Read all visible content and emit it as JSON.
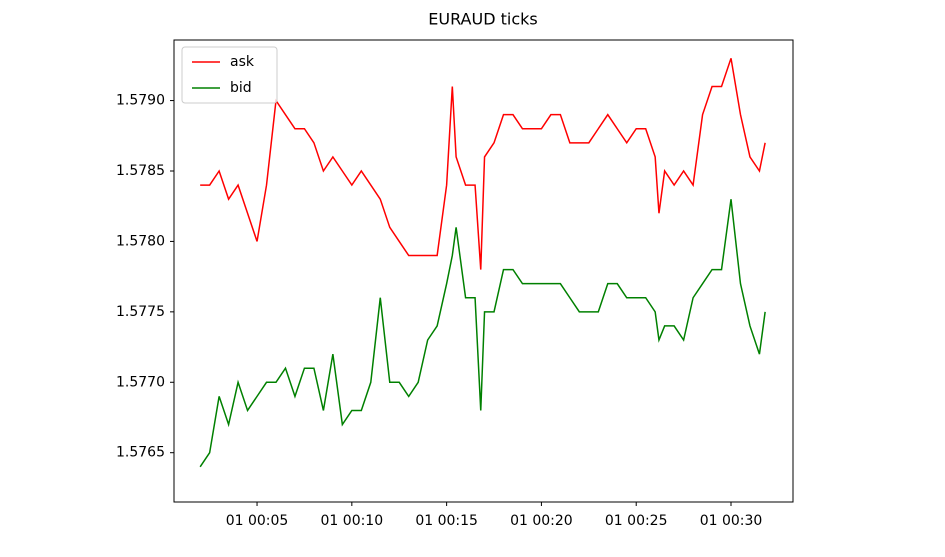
{
  "chart_data": {
    "type": "line",
    "title": "EURAUD ticks",
    "x": [
      2,
      2.5,
      3,
      3.5,
      4,
      4.5,
      5,
      5.5,
      6,
      6.5,
      7,
      7.5,
      8,
      8.5,
      9,
      9.5,
      10,
      10.5,
      11,
      11.5,
      12,
      12.5,
      13,
      13.5,
      14,
      14.5,
      15,
      15.3,
      15.5,
      16,
      16.5,
      16.8,
      17,
      17.5,
      18,
      18.5,
      19,
      19.5,
      20,
      20.5,
      21,
      21.5,
      22,
      22.5,
      23,
      23.5,
      24,
      24.5,
      25,
      25.5,
      26,
      26.2,
      26.5,
      27,
      27.5,
      28,
      28.5,
      29,
      29.5,
      30,
      30.5,
      31,
      31.5,
      31.8
    ],
    "series": [
      {
        "name": "ask",
        "color": "#ff0000",
        "values": [
          1.5784,
          1.5784,
          1.5785,
          1.5783,
          1.5784,
          1.5782,
          1.578,
          1.5784,
          1.579,
          1.5789,
          1.5788,
          1.5788,
          1.5787,
          1.5785,
          1.5786,
          1.5785,
          1.5784,
          1.5785,
          1.5784,
          1.5783,
          1.5781,
          1.578,
          1.5779,
          1.5779,
          1.5779,
          1.5779,
          1.5784,
          1.5791,
          1.5786,
          1.5784,
          1.5784,
          1.5778,
          1.5786,
          1.5787,
          1.5789,
          1.5789,
          1.5788,
          1.5788,
          1.5788,
          1.5789,
          1.5789,
          1.5787,
          1.5787,
          1.5787,
          1.5788,
          1.5789,
          1.5788,
          1.5787,
          1.5788,
          1.5788,
          1.5786,
          1.5782,
          1.5785,
          1.5784,
          1.5785,
          1.5784,
          1.5789,
          1.5791,
          1.5791,
          1.5793,
          1.5789,
          1.5786,
          1.5785,
          1.5787
        ]
      },
      {
        "name": "bid",
        "color": "#008000",
        "values": [
          1.5764,
          1.5765,
          1.5769,
          1.5767,
          1.577,
          1.5768,
          1.5769,
          1.577,
          1.577,
          1.5771,
          1.5769,
          1.5771,
          1.5771,
          1.5768,
          1.5772,
          1.5767,
          1.5768,
          1.5768,
          1.577,
          1.5776,
          1.577,
          1.577,
          1.5769,
          1.577,
          1.5773,
          1.5774,
          1.5777,
          1.5779,
          1.5781,
          1.5776,
          1.5776,
          1.5768,
          1.5775,
          1.5775,
          1.5778,
          1.5778,
          1.5777,
          1.5777,
          1.5777,
          1.5777,
          1.5777,
          1.5776,
          1.5775,
          1.5775,
          1.5775,
          1.5777,
          1.5777,
          1.5776,
          1.5776,
          1.5776,
          1.5775,
          1.5773,
          1.5774,
          1.5774,
          1.5773,
          1.5776,
          1.5777,
          1.5778,
          1.5778,
          1.5783,
          1.5777,
          1.5774,
          1.5772,
          1.5775
        ]
      }
    ],
    "xlim": [
      0.62,
      33.27
    ],
    "xticks": [
      {
        "value": 5,
        "label": "01 00:05"
      },
      {
        "value": 10,
        "label": "01 00:10"
      },
      {
        "value": 15,
        "label": "01 00:15"
      },
      {
        "value": 20,
        "label": "01 00:20"
      },
      {
        "value": 25,
        "label": "01 00:25"
      },
      {
        "value": 30,
        "label": "01 00:30"
      }
    ],
    "ylim": [
      1.57615,
      1.57943
    ],
    "yticks": [
      1.5765,
      {
        "value": 1.577,
        "label": "1.5770"
      },
      1.5775,
      {
        "value": 1.578,
        "label": "1.5780"
      },
      1.5785,
      {
        "value": 1.579,
        "label": "1.5790"
      }
    ],
    "legend": "upper left"
  }
}
